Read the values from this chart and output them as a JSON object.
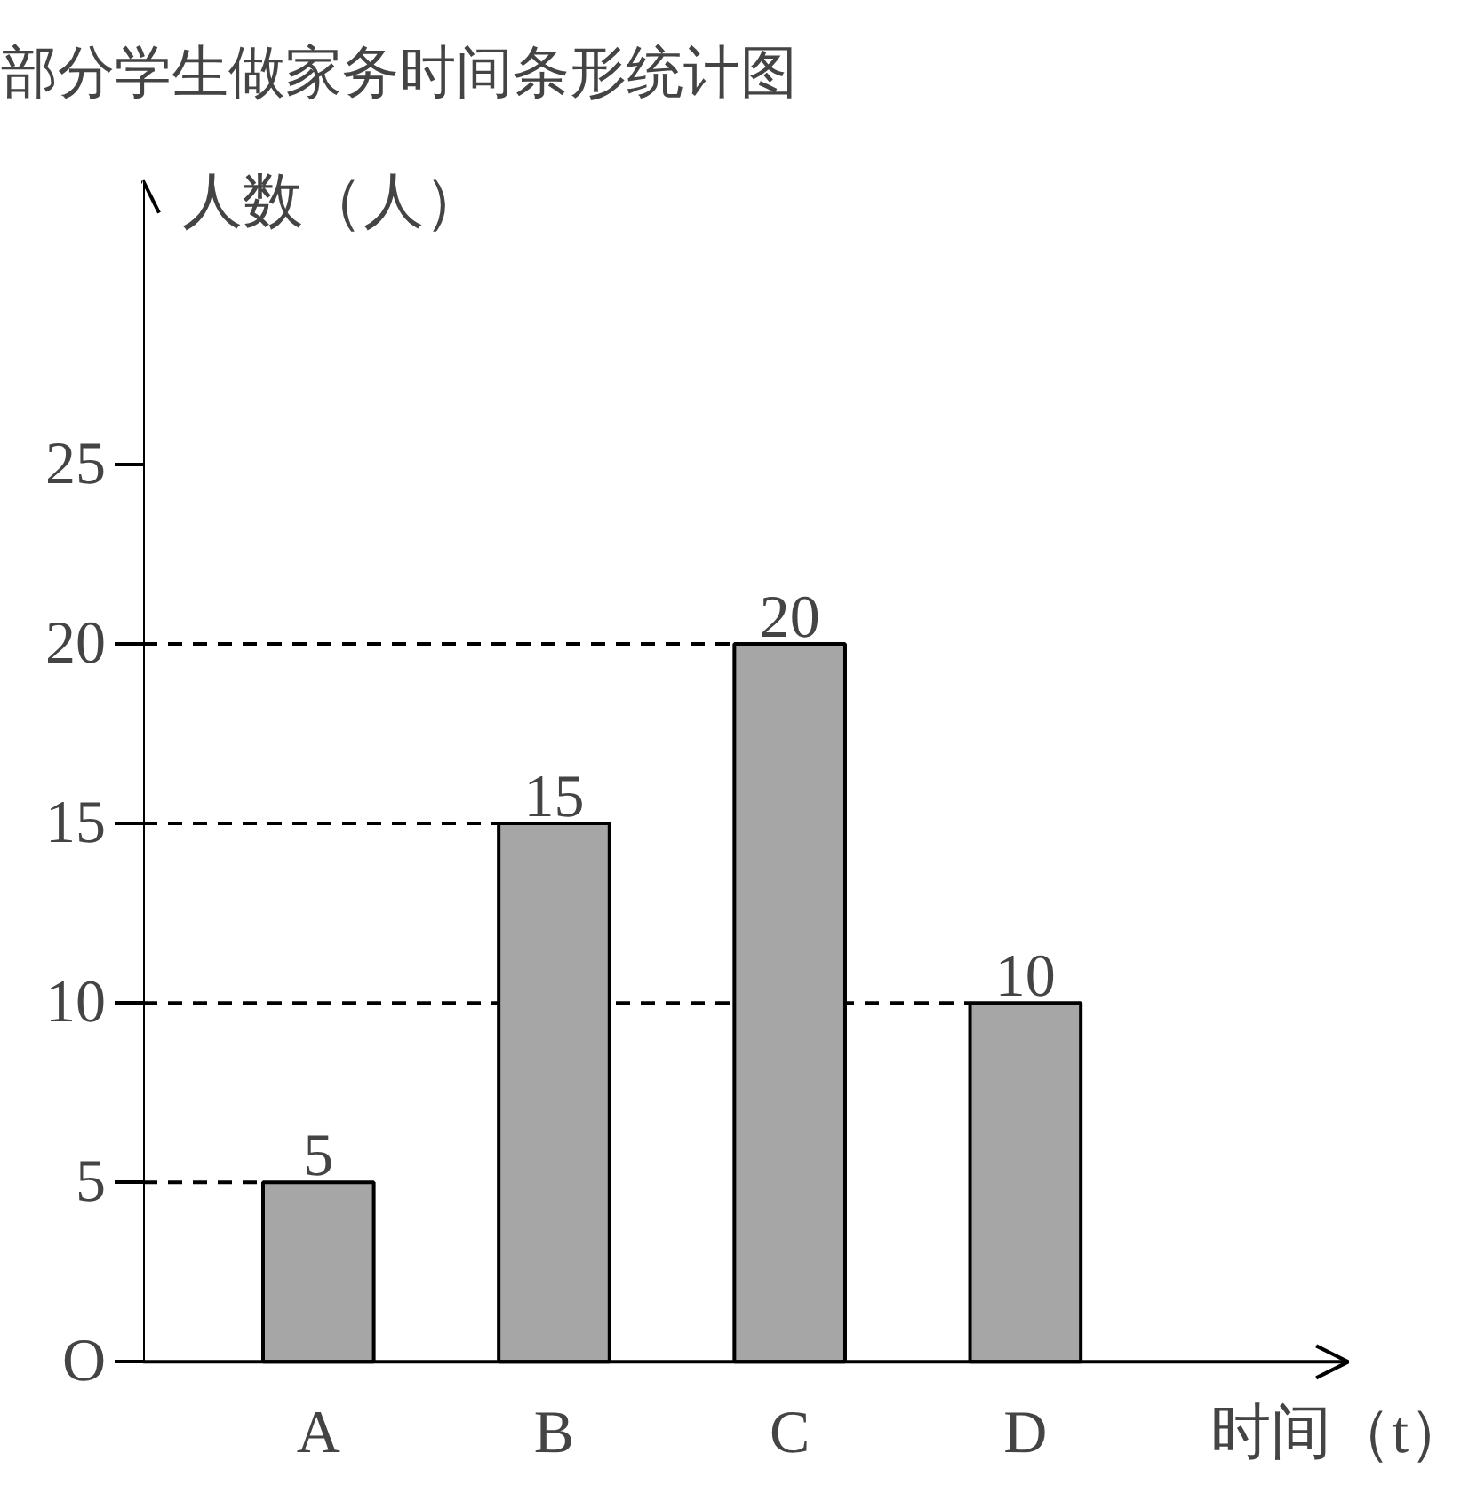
{
  "chart_data": {
    "type": "bar",
    "title": "部分学生做家务时间条形统计图",
    "xlabel": "时间（t）",
    "ylabel": "人数（人）",
    "categories": [
      "A",
      "B",
      "C",
      "D"
    ],
    "values": [
      5,
      15,
      20,
      10
    ],
    "color": "#a6a6a6",
    "ylim": [
      0,
      32.9
    ],
    "yticks": [
      {
        "value": 0,
        "label": "O"
      },
      5,
      10,
      15,
      20,
      25
    ],
    "ref_lines": [
      {
        "axis": "y",
        "value": 5,
        "line_style": "dashed"
      },
      {
        "axis": "y",
        "value": 10,
        "line_style": "dashed"
      },
      {
        "axis": "y",
        "value": 15,
        "line_style": "dashed"
      },
      {
        "axis": "y",
        "value": 20,
        "line_style": "dashed"
      }
    ],
    "data_labels": true,
    "grid": false
  }
}
